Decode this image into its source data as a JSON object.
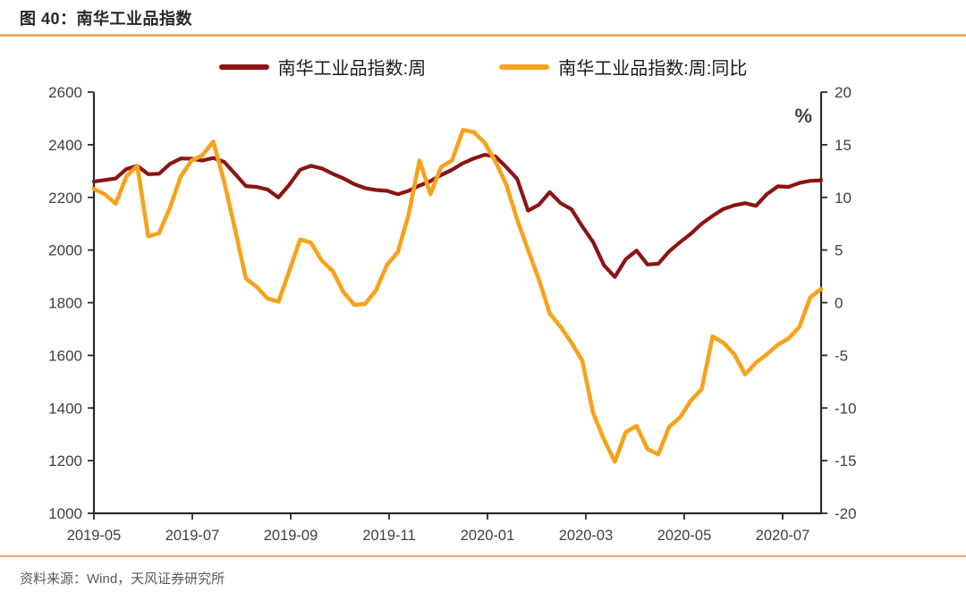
{
  "title": "图 40：南华工业品指数",
  "source_note": "资料来源：Wind，天风证券研究所",
  "legend": [
    {
      "label": "南华工业品指数:周",
      "color": "#8b1414"
    },
    {
      "label": "南华工业品指数:周:同比",
      "color": "#f7a21b"
    }
  ],
  "chart_data": {
    "type": "line",
    "title": "南华工业品指数",
    "x_tick_labels": [
      "2019-05",
      "2019-07",
      "2019-09",
      "2019-11",
      "2020-01",
      "2020-03",
      "2020-05",
      "2020-07"
    ],
    "left_axis": {
      "min": 1000,
      "max": 2600,
      "step": 200,
      "ticks": [
        1000,
        1200,
        1400,
        1600,
        1800,
        2000,
        2200,
        2400,
        2600
      ]
    },
    "right_axis": {
      "min": -20,
      "max": 20,
      "step": 5,
      "unit": "%",
      "ticks": [
        -20,
        -15,
        -10,
        -5,
        0,
        5,
        10,
        15,
        20
      ]
    },
    "grid": false,
    "legend_position": "top",
    "series": [
      {
        "name": "南华工业品指数:周",
        "axis": "left",
        "color": "#8b1414",
        "values": [
          2260,
          2266,
          2272,
          2308,
          2320,
          2288,
          2290,
          2327,
          2348,
          2347,
          2340,
          2350,
          2335,
          2290,
          2243,
          2240,
          2230,
          2200,
          2248,
          2305,
          2320,
          2310,
          2290,
          2272,
          2250,
          2235,
          2228,
          2225,
          2212,
          2225,
          2245,
          2262,
          2285,
          2305,
          2330,
          2348,
          2362,
          2355,
          2315,
          2270,
          2150,
          2172,
          2220,
          2178,
          2155,
          2090,
          2030,
          1942,
          1898,
          1965,
          1998,
          1945,
          1948,
          1995,
          2030,
          2062,
          2100,
          2130,
          2156,
          2170,
          2178,
          2168,
          2212,
          2242,
          2240,
          2255,
          2263,
          2265
        ]
      },
      {
        "name": "南华工业品指数:周:同比",
        "axis": "right",
        "color": "#f7a21b",
        "values": [
          10.8,
          10.3,
          9.4,
          12.0,
          13.0,
          6.3,
          6.6,
          9.0,
          12.0,
          13.5,
          14.0,
          15.3,
          11.5,
          7.0,
          2.3,
          1.5,
          0.4,
          0.1,
          3.0,
          6.0,
          5.7,
          4.0,
          3.0,
          1.0,
          -0.2,
          -0.1,
          1.2,
          3.6,
          4.8,
          8.4,
          13.5,
          10.3,
          12.9,
          13.5,
          16.4,
          16.2,
          15.2,
          13.4,
          11.2,
          7.9,
          5.0,
          2.2,
          -1.0,
          -2.3,
          -3.8,
          -5.5,
          -10.5,
          -13.0,
          -15.1,
          -12.3,
          -11.7,
          -13.9,
          -14.4,
          -11.8,
          -10.9,
          -9.3,
          -8.2,
          -3.2,
          -3.8,
          -4.9,
          -6.8,
          -5.7,
          -4.9,
          -4.0,
          -3.4,
          -2.3,
          0.5,
          1.3
        ]
      }
    ]
  }
}
